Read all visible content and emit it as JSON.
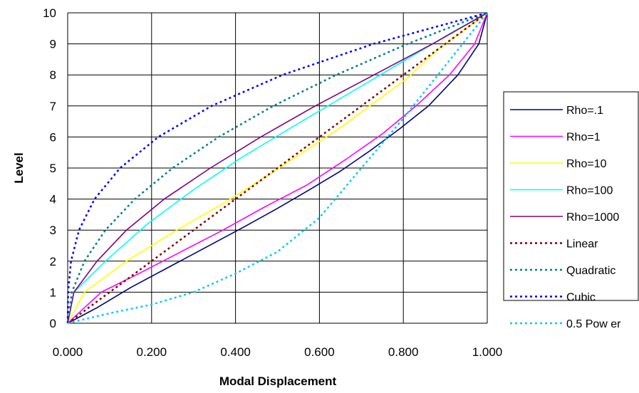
{
  "chart_data": {
    "type": "line",
    "title": "",
    "xlabel": "Modal Displacement",
    "ylabel": "Level",
    "xlim": [
      0,
      1
    ],
    "ylim": [
      0,
      10
    ],
    "xticks": [
      "0.000",
      "0.200",
      "0.400",
      "0.600",
      "0.800",
      "1.000"
    ],
    "yticks": [
      "0",
      "1",
      "2",
      "3",
      "4",
      "5",
      "6",
      "7",
      "8",
      "9",
      "10"
    ],
    "grid": true,
    "legend_position": "right",
    "series": [
      {
        "name": "Rho=.1",
        "color": "#000080",
        "dash": "solid",
        "points": [
          [
            0,
            0
          ],
          [
            0.07,
            0.5
          ],
          [
            0.15,
            1.15
          ],
          [
            0.24,
            1.8
          ],
          [
            0.33,
            2.45
          ],
          [
            0.42,
            3.1
          ],
          [
            0.5,
            3.7
          ],
          [
            0.57,
            4.25
          ],
          [
            0.65,
            4.9
          ],
          [
            0.72,
            5.55
          ],
          [
            0.79,
            6.25
          ],
          [
            0.86,
            7.0
          ],
          [
            0.93,
            8.0
          ],
          [
            0.98,
            9.0
          ],
          [
            1.0,
            10
          ]
        ]
      },
      {
        "name": "Rho=1",
        "color": "#ff00ff",
        "dash": "solid",
        "points": [
          [
            0,
            0
          ],
          [
            0.08,
            1.0
          ],
          [
            0.17,
            1.6
          ],
          [
            0.27,
            2.3
          ],
          [
            0.37,
            3.0
          ],
          [
            0.47,
            3.75
          ],
          [
            0.57,
            4.45
          ],
          [
            0.66,
            5.25
          ],
          [
            0.75,
            6.1
          ],
          [
            0.83,
            7.0
          ],
          [
            0.91,
            8.0
          ],
          [
            0.97,
            9.0
          ],
          [
            1.0,
            10
          ]
        ]
      },
      {
        "name": "Rho=10",
        "color": "#ffff00",
        "dash": "solid",
        "points": [
          [
            0,
            0
          ],
          [
            0.04,
            1.0
          ],
          [
            0.14,
            2.0
          ],
          [
            0.26,
            3.0
          ],
          [
            0.37,
            3.85
          ],
          [
            0.47,
            4.7
          ],
          [
            0.56,
            5.5
          ],
          [
            0.65,
            6.3
          ],
          [
            0.73,
            7.1
          ],
          [
            0.81,
            7.9
          ],
          [
            0.88,
            8.8
          ],
          [
            0.95,
            9.5
          ],
          [
            1.0,
            10
          ]
        ]
      },
      {
        "name": "Rho=100",
        "color": "#00ffff",
        "dash": "solid",
        "points": [
          [
            0,
            0
          ],
          [
            0.015,
            1.0
          ],
          [
            0.09,
            2.0
          ],
          [
            0.19,
            3.2
          ],
          [
            0.3,
            4.3
          ],
          [
            0.41,
            5.3
          ],
          [
            0.52,
            6.2
          ],
          [
            0.62,
            7.0
          ],
          [
            0.72,
            7.8
          ],
          [
            0.82,
            8.6
          ],
          [
            0.92,
            9.4
          ],
          [
            1.0,
            10
          ]
        ]
      },
      {
        "name": "Rho=1000",
        "color": "#800080",
        "dash": "solid",
        "points": [
          [
            0,
            0
          ],
          [
            0.015,
            1.0
          ],
          [
            0.07,
            2.0
          ],
          [
            0.14,
            3.0
          ],
          [
            0.23,
            4.0
          ],
          [
            0.34,
            5.0
          ],
          [
            0.46,
            6.0
          ],
          [
            0.59,
            7.0
          ],
          [
            0.73,
            8.0
          ],
          [
            0.87,
            9.0
          ],
          [
            1.0,
            10
          ]
        ]
      },
      {
        "name": "Linear",
        "color": "#800000",
        "dash": "dotted",
        "points": [
          [
            0,
            0
          ],
          [
            0.1,
            1
          ],
          [
            0.2,
            2
          ],
          [
            0.3,
            3
          ],
          [
            0.4,
            4
          ],
          [
            0.5,
            5
          ],
          [
            0.6,
            6
          ],
          [
            0.7,
            7
          ],
          [
            0.8,
            8
          ],
          [
            0.9,
            9
          ],
          [
            1.0,
            10
          ]
        ]
      },
      {
        "name": "Quadratic",
        "color": "#008080",
        "dash": "dotted",
        "points": [
          [
            0,
            0
          ],
          [
            0.01,
            1
          ],
          [
            0.04,
            2
          ],
          [
            0.09,
            3
          ],
          [
            0.16,
            4
          ],
          [
            0.25,
            5
          ],
          [
            0.36,
            6
          ],
          [
            0.49,
            7
          ],
          [
            0.64,
            8
          ],
          [
            0.81,
            9
          ],
          [
            1.0,
            10
          ]
        ]
      },
      {
        "name": "Cubic",
        "color": "#0000ff",
        "dash": "dotted",
        "points": [
          [
            0,
            0
          ],
          [
            0.001,
            1
          ],
          [
            0.008,
            2
          ],
          [
            0.027,
            3
          ],
          [
            0.064,
            4
          ],
          [
            0.125,
            5
          ],
          [
            0.216,
            6
          ],
          [
            0.343,
            7
          ],
          [
            0.512,
            8
          ],
          [
            0.729,
            9
          ],
          [
            1.0,
            10
          ]
        ]
      },
      {
        "name": "0.5 Pow er",
        "color": "#00ccff",
        "dash": "dotted",
        "points": [
          [
            0,
            0
          ],
          [
            0.1,
            0.32
          ],
          [
            0.2,
            0.6
          ],
          [
            0.3,
            1.0
          ],
          [
            0.4,
            1.6
          ],
          [
            0.5,
            2.3
          ],
          [
            0.6,
            3.4
          ],
          [
            0.7,
            5.0
          ],
          [
            0.8,
            6.6
          ],
          [
            0.9,
            8.3
          ],
          [
            1.0,
            10
          ]
        ]
      }
    ]
  }
}
